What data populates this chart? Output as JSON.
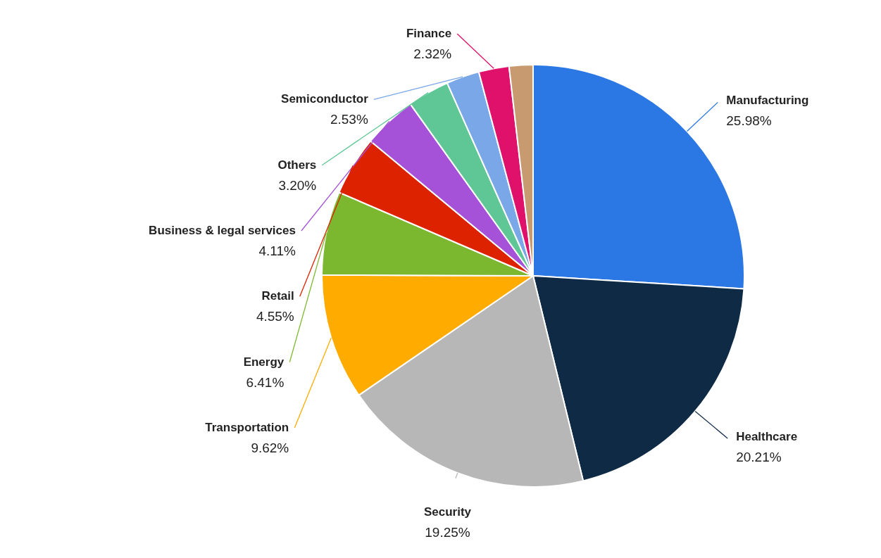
{
  "chart_data": {
    "type": "pie",
    "categories": [
      "Manufacturing",
      "Healthcare",
      "Security",
      "Transportation",
      "Energy",
      "Retail",
      "Business & legal services",
      "Others",
      "Semiconductor",
      "Finance",
      null
    ],
    "values": [
      25.98,
      20.21,
      19.25,
      9.62,
      6.41,
      4.55,
      4.11,
      3.2,
      2.53,
      2.32,
      1.82
    ],
    "value_labels": [
      "25.98%",
      "20.21%",
      "19.25%",
      "9.62%",
      "6.41%",
      "4.55%",
      "4.11%",
      "3.20%",
      "2.53%",
      "2.32%",
      null
    ],
    "colors": [
      "#2b78e4",
      "#0f2a45",
      "#b7b7b7",
      "#ffab00",
      "#7cb82f",
      "#dd2200",
      "#a552d9",
      "#5ec795",
      "#7aa7e8",
      "#e0116a",
      "#c79a6f"
    ]
  }
}
